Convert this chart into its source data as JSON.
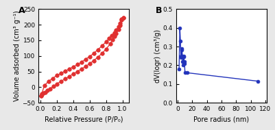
{
  "panel_A": {
    "label": "A",
    "xlabel": "Relative Pressure (P/P₀)",
    "ylabel": "Volume adsorbed (cm³ g⁻¹)",
    "xlim": [
      -0.02,
      1.08
    ],
    "ylim": [
      -50,
      250
    ],
    "yticks": [
      -50,
      0,
      50,
      100,
      150,
      200,
      250
    ],
    "xticks": [
      0.0,
      0.2,
      0.4,
      0.6,
      0.8,
      1.0
    ],
    "color": "#e03030",
    "adsorption_x": [
      0.01,
      0.02,
      0.04,
      0.06,
      0.09,
      0.12,
      0.16,
      0.2,
      0.25,
      0.3,
      0.35,
      0.4,
      0.45,
      0.5,
      0.55,
      0.6,
      0.65,
      0.7,
      0.75,
      0.8,
      0.85,
      0.88,
      0.9,
      0.92,
      0.95,
      0.97,
      0.99,
      1.01
    ],
    "adsorption_y": [
      -28,
      -24,
      -20,
      -16,
      -10,
      -5,
      2,
      10,
      18,
      26,
      34,
      42,
      50,
      58,
      66,
      75,
      85,
      96,
      108,
      122,
      138,
      152,
      163,
      172,
      185,
      198,
      215,
      222
    ],
    "desorption_x": [
      1.01,
      0.99,
      0.97,
      0.95,
      0.92,
      0.9,
      0.87,
      0.84,
      0.8,
      0.75,
      0.7,
      0.65,
      0.6,
      0.55,
      0.5,
      0.45,
      0.4,
      0.35,
      0.3,
      0.25,
      0.2,
      0.15,
      0.1,
      0.05,
      0.02,
      0.01
    ],
    "desorption_y": [
      222,
      218,
      205,
      193,
      182,
      175,
      166,
      157,
      145,
      132,
      120,
      108,
      98,
      89,
      80,
      72,
      65,
      58,
      51,
      44,
      37,
      28,
      18,
      5,
      -22,
      -28
    ]
  },
  "panel_B": {
    "label": "B",
    "xlabel": "Pore radius (nm)",
    "ylabel": "dV(logr) (cm³/g)",
    "xlim": [
      -2,
      122
    ],
    "ylim": [
      0.0,
      0.5
    ],
    "yticks": [
      0.0,
      0.1,
      0.2,
      0.3,
      0.4,
      0.5
    ],
    "xticks": [
      0,
      20,
      40,
      60,
      80,
      100,
      120
    ],
    "color": "#2233bb",
    "pore_x": [
      2.0,
      3.0,
      3.8,
      4.5,
      5.0,
      5.5,
      6.0,
      6.5,
      7.0,
      7.5,
      8.0,
      8.5,
      9.0,
      9.5,
      10.0,
      13.0,
      110.0
    ],
    "pore_y": [
      0.18,
      0.4,
      0.33,
      0.25,
      0.24,
      0.29,
      0.28,
      0.25,
      0.22,
      0.2,
      0.245,
      0.25,
      0.22,
      0.21,
      0.16,
      0.16,
      0.115
    ]
  },
  "bg_color": "#ffffff",
  "fig_bg": "#e8e8e8"
}
